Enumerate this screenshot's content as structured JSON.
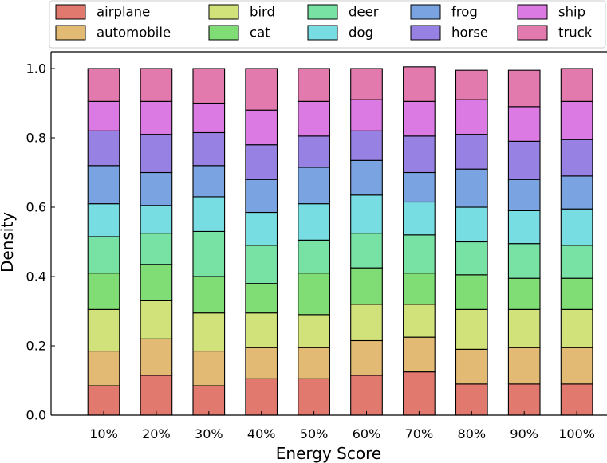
{
  "chart_data": {
    "type": "bar",
    "stacked": true,
    "title": "",
    "xlabel": "Energy Score",
    "ylabel": "Density",
    "ylim": [
      0,
      1.0
    ],
    "yticks": [
      "0.0",
      "0.2",
      "0.4",
      "0.6",
      "0.8",
      "1.0"
    ],
    "grid": false,
    "legend_position": "top",
    "categories": [
      "10%",
      "20%",
      "30%",
      "40%",
      "50%",
      "60%",
      "70%",
      "80%",
      "90%",
      "100%"
    ],
    "series": [
      {
        "name": "airplane",
        "color": "#e2796f",
        "values": [
          0.085,
          0.115,
          0.085,
          0.105,
          0.105,
          0.115,
          0.125,
          0.09,
          0.09,
          0.09
        ]
      },
      {
        "name": "automobile",
        "color": "#e2ba74",
        "values": [
          0.1,
          0.105,
          0.1,
          0.09,
          0.09,
          0.1,
          0.1,
          0.1,
          0.105,
          0.105
        ]
      },
      {
        "name": "bird",
        "color": "#d2e27a",
        "values": [
          0.12,
          0.11,
          0.11,
          0.1,
          0.095,
          0.105,
          0.095,
          0.115,
          0.11,
          0.11
        ]
      },
      {
        "name": "cat",
        "color": "#80dd76",
        "values": [
          0.105,
          0.105,
          0.105,
          0.085,
          0.12,
          0.105,
          0.09,
          0.1,
          0.09,
          0.09
        ]
      },
      {
        "name": "deer",
        "color": "#78e2a5",
        "values": [
          0.105,
          0.09,
          0.13,
          0.11,
          0.095,
          0.1,
          0.11,
          0.095,
          0.1,
          0.095
        ]
      },
      {
        "name": "dog",
        "color": "#78dde2",
        "values": [
          0.095,
          0.08,
          0.1,
          0.095,
          0.105,
          0.11,
          0.095,
          0.1,
          0.095,
          0.105
        ]
      },
      {
        "name": "frog",
        "color": "#7aa3e2",
        "values": [
          0.11,
          0.095,
          0.09,
          0.095,
          0.105,
          0.1,
          0.085,
          0.11,
          0.09,
          0.095
        ]
      },
      {
        "name": "horse",
        "color": "#9781e2",
        "values": [
          0.1,
          0.11,
          0.095,
          0.1,
          0.09,
          0.085,
          0.105,
          0.1,
          0.11,
          0.105
        ]
      },
      {
        "name": "ship",
        "color": "#da7ae2",
        "values": [
          0.085,
          0.095,
          0.085,
          0.1,
          0.1,
          0.09,
          0.1,
          0.1,
          0.1,
          0.11
        ]
      },
      {
        "name": "truck",
        "color": "#e27aae",
        "values": [
          0.095,
          0.095,
          0.1,
          0.12,
          0.095,
          0.09,
          0.1,
          0.085,
          0.105,
          0.095
        ]
      }
    ]
  }
}
